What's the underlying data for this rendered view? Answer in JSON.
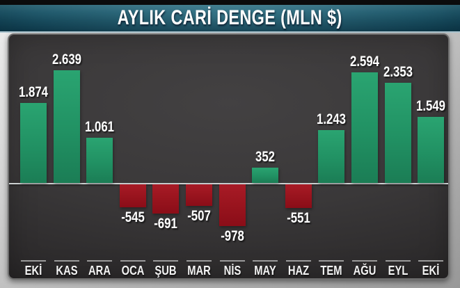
{
  "title": "AYLIK CARİ DENGE (MLN $)",
  "chart_data": {
    "type": "bar",
    "title": "AYLIK CARİ DENGE (MLN $)",
    "xlabel": "",
    "ylabel": "",
    "categories": [
      "EKİ",
      "KAS",
      "ARA",
      "OCA",
      "ŞUB",
      "MAR",
      "NİS",
      "MAY",
      "HAZ",
      "TEM",
      "AĞU",
      "EYL",
      "EKİ"
    ],
    "values": [
      1874,
      2639,
      1061,
      -545,
      -691,
      -507,
      -978,
      352,
      -551,
      1243,
      2594,
      2353,
      1549
    ],
    "value_labels": [
      "1.874",
      "2.639",
      "1.061",
      "-545",
      "-691",
      "-507",
      "-978",
      "352",
      "-551",
      "1.243",
      "2.594",
      "2.353",
      "1.549"
    ],
    "ylim": [
      -1200,
      3000
    ],
    "grid": false,
    "legend": null,
    "annotations": [],
    "colors": {
      "positive_bar": "#219163",
      "negative_bar": "#99141e",
      "zero_line": "#cdd1d2",
      "panel_background": "#3a3839",
      "title_bar": "#196379",
      "label_text": "#ffffff"
    }
  }
}
